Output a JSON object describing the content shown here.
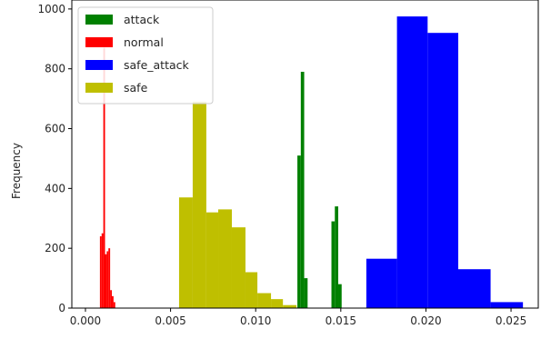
{
  "chart_data": {
    "type": "histogram",
    "title": "",
    "xlabel": "",
    "ylabel": "Frequency",
    "xlim": [
      -0.0008,
      0.0266
    ],
    "ylim": [
      0,
      1030
    ],
    "x_ticks": [
      0.0,
      0.005,
      0.01,
      0.015,
      0.02,
      0.025
    ],
    "x_tick_labels": [
      "0.000",
      "0.005",
      "0.010",
      "0.015",
      "0.020",
      "0.025"
    ],
    "y_ticks": [
      0,
      200,
      400,
      600,
      800,
      1000
    ],
    "y_tick_labels": [
      "0",
      "200",
      "400",
      "600",
      "800",
      "1000"
    ],
    "legend_position": "top-left",
    "series": [
      {
        "name": "attack",
        "color": "#008000",
        "bins": [
          {
            "x0": 0.01245,
            "x1": 0.01265,
            "count": 510
          },
          {
            "x0": 0.01265,
            "x1": 0.01285,
            "count": 790
          },
          {
            "x0": 0.01285,
            "x1": 0.01305,
            "count": 100
          },
          {
            "x0": 0.01445,
            "x1": 0.01465,
            "count": 290
          },
          {
            "x0": 0.01465,
            "x1": 0.01485,
            "count": 340
          },
          {
            "x0": 0.01485,
            "x1": 0.01505,
            "count": 80
          }
        ]
      },
      {
        "name": "normal",
        "color": "#ff0000",
        "bins": [
          {
            "x0": 0.00085,
            "x1": 0.00095,
            "count": 240
          },
          {
            "x0": 0.00095,
            "x1": 0.00105,
            "count": 250
          },
          {
            "x0": 0.00105,
            "x1": 0.00115,
            "count": 870
          },
          {
            "x0": 0.00115,
            "x1": 0.00125,
            "count": 180
          },
          {
            "x0": 0.00125,
            "x1": 0.00135,
            "count": 190
          },
          {
            "x0": 0.00135,
            "x1": 0.00145,
            "count": 200
          },
          {
            "x0": 0.00145,
            "x1": 0.00155,
            "count": 60
          },
          {
            "x0": 0.00155,
            "x1": 0.00165,
            "count": 40
          },
          {
            "x0": 0.00165,
            "x1": 0.00175,
            "count": 20
          }
        ]
      },
      {
        "name": "safe_attack",
        "color": "#0000ff",
        "bins": [
          {
            "x0": 0.0165,
            "x1": 0.0183,
            "count": 165
          },
          {
            "x0": 0.0183,
            "x1": 0.0201,
            "count": 975
          },
          {
            "x0": 0.0201,
            "x1": 0.0219,
            "count": 920
          },
          {
            "x0": 0.0219,
            "x1": 0.0238,
            "count": 130
          },
          {
            "x0": 0.0238,
            "x1": 0.0257,
            "count": 20
          }
        ]
      },
      {
        "name": "safe",
        "color": "#bfbf00",
        "bins": [
          {
            "x0": 0.0055,
            "x1": 0.0063,
            "count": 370
          },
          {
            "x0": 0.0063,
            "x1": 0.0071,
            "count": 690
          },
          {
            "x0": 0.0071,
            "x1": 0.0078,
            "count": 320
          },
          {
            "x0": 0.0078,
            "x1": 0.0086,
            "count": 330
          },
          {
            "x0": 0.0086,
            "x1": 0.0094,
            "count": 270
          },
          {
            "x0": 0.0094,
            "x1": 0.0101,
            "count": 120
          },
          {
            "x0": 0.0101,
            "x1": 0.0109,
            "count": 50
          },
          {
            "x0": 0.0109,
            "x1": 0.0116,
            "count": 30
          },
          {
            "x0": 0.0116,
            "x1": 0.0124,
            "count": 10
          }
        ]
      }
    ]
  }
}
